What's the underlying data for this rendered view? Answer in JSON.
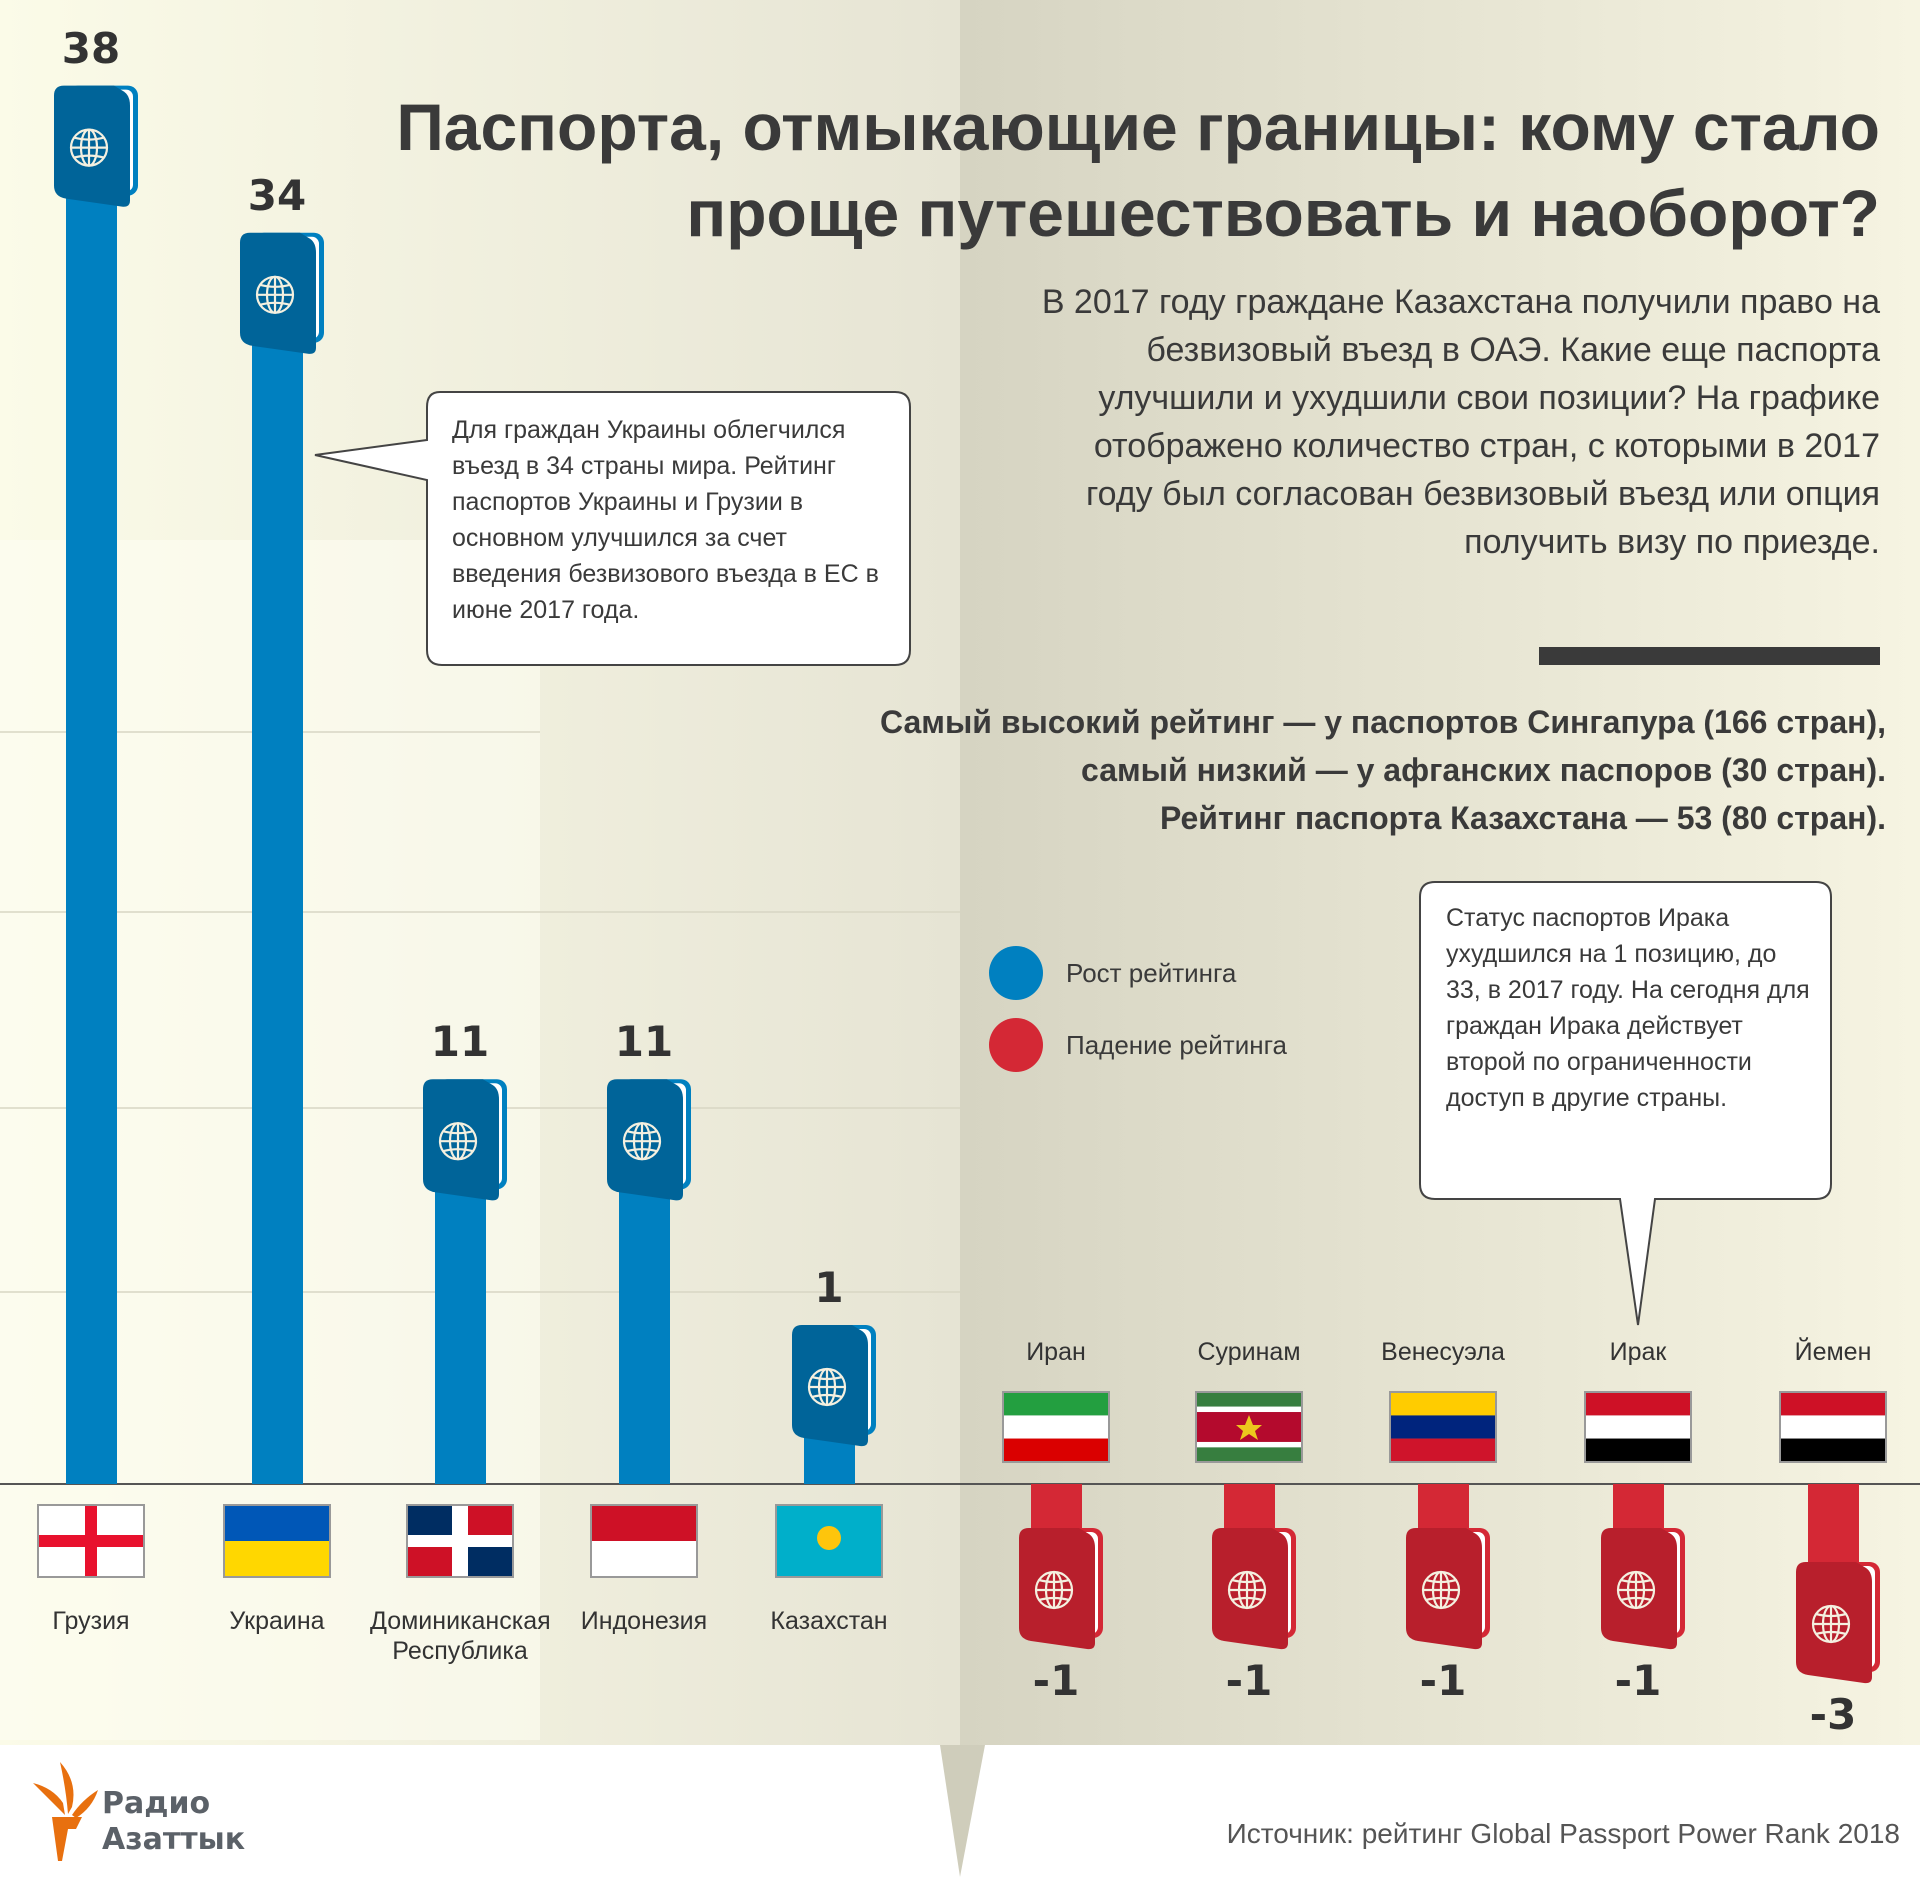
{
  "title": "Паспорта, отмыкающие границы: кому стало проще путешествовать и наоборот?",
  "intro": "В 2017 году граждане Казахстана получили право на безвизовый въезд в ОАЭ. Какие еще паспорта улучшили и ухудшили свои позиции? На графике отображено количество стран, с которыми в 2017 году был согласован безвизовый въезд или опция получить визу по приезде.",
  "stats": [
    "Самый высокий рейтинг — у паспортов Сингапура (166 стран),",
    "самый низкий  — у афганских паспоров (30 стран).",
    "Рейтинг паспорта Казахстана — 53 (80 стран)."
  ],
  "callout_ukraine": "Для граждан Украины облегчился въезд в 34 страны мира. Рейтинг паспортов Украины и Грузии в основном улучшился за счет введения безвизового въезда в ЕС в июне 2017 года.",
  "callout_iraq": "Статус паспортов Ирака ухудшился на 1 позицию, до 33, в 2017 году. На сегодня для граждан Ирака действует второй по ограниченности доступ в другие страны.",
  "legend": {
    "up": "Рост рейтинга",
    "down": "Падение рейтинга"
  },
  "source": "Источник: рейтинг Global Passport Power Rank 2018",
  "logo": {
    "line1": "Радио",
    "line2": "Азаттык"
  },
  "colors": {
    "up": "#0080c0",
    "up_cover": "#006499",
    "down": "#d42835",
    "down_cover": "#b81f2c",
    "text": "#3a3a3a"
  },
  "chart_data": {
    "type": "bar",
    "categories": [
      "Грузия",
      "Украина",
      "Доминиканская Республика",
      "Индонезия",
      "Казахстан",
      "Иран",
      "Суринам",
      "Венесуэла",
      "Ирак",
      "Йемен"
    ],
    "values": [
      38,
      34,
      11,
      11,
      1,
      -1,
      -1,
      -1,
      -1,
      -3
    ],
    "labels": [
      "38",
      "34",
      "11",
      "11",
      "1",
      "-1",
      "-1",
      "-1",
      "-1",
      "-3"
    ]
  }
}
